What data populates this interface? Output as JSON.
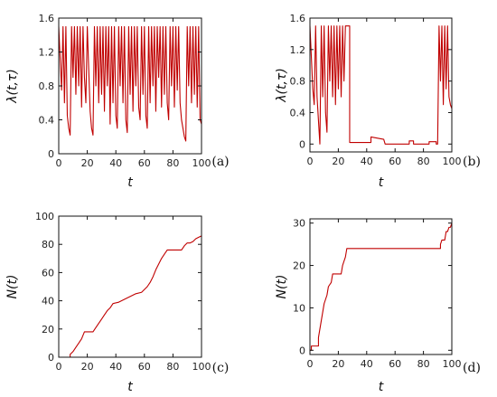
{
  "colors": {
    "series": "#c00000",
    "secondary": "#5a8a2a"
  },
  "chart_data": [
    {
      "id": "a",
      "type": "line",
      "panel_tag": "(a)",
      "xlabel": "t",
      "ylabel": "λ(t,τ)",
      "xlim": [
        0,
        100
      ],
      "ylim": [
        0,
        1.6
      ],
      "xticks": [
        "0",
        "20",
        "40",
        "60",
        "80",
        "100"
      ],
      "yticks": [
        "0",
        "0.4",
        "0.8",
        "1.2",
        "1.6"
      ],
      "grid": false,
      "legend": "none",
      "series": [
        {
          "points": [
            [
              0,
              1.5
            ],
            [
              2,
              0.75
            ],
            [
              3,
              1.5
            ],
            [
              4,
              0.6
            ],
            [
              5,
              1.5
            ],
            [
              6,
              0.45
            ],
            [
              7,
              0.3
            ],
            [
              8,
              0.22
            ],
            [
              9,
              1.5
            ],
            [
              10,
              0.9
            ],
            [
              11,
              1.5
            ],
            [
              12,
              0.7
            ],
            [
              13,
              1.5
            ],
            [
              14,
              0.8
            ],
            [
              15,
              1.5
            ],
            [
              16,
              0.55
            ],
            [
              17,
              1.5
            ],
            [
              18,
              0.9
            ],
            [
              19,
              0.6
            ],
            [
              20,
              1.5
            ],
            [
              21,
              1.0
            ],
            [
              22,
              0.5
            ],
            [
              23,
              0.3
            ],
            [
              24,
              0.22
            ],
            [
              25,
              1.5
            ],
            [
              26,
              0.8
            ],
            [
              27,
              1.5
            ],
            [
              28,
              0.6
            ],
            [
              29,
              1.5
            ],
            [
              30,
              0.7
            ],
            [
              31,
              1.5
            ],
            [
              32,
              0.5
            ],
            [
              33,
              1.5
            ],
            [
              34,
              0.8
            ],
            [
              35,
              1.5
            ],
            [
              36,
              0.35
            ],
            [
              37,
              1.5
            ],
            [
              38,
              0.6
            ],
            [
              39,
              1.5
            ],
            [
              40,
              0.45
            ],
            [
              41,
              0.3
            ],
            [
              42,
              1.5
            ],
            [
              43,
              0.8
            ],
            [
              44,
              1.5
            ],
            [
              45,
              0.6
            ],
            [
              46,
              1.5
            ],
            [
              47,
              0.4
            ],
            [
              48,
              0.25
            ],
            [
              49,
              1.5
            ],
            [
              50,
              0.7
            ],
            [
              51,
              1.5
            ],
            [
              52,
              0.5
            ],
            [
              53,
              1.5
            ],
            [
              54,
              0.8
            ],
            [
              55,
              1.5
            ],
            [
              56,
              0.55
            ],
            [
              57,
              0.4
            ],
            [
              58,
              1.5
            ],
            [
              59,
              0.7
            ],
            [
              60,
              1.5
            ],
            [
              61,
              0.45
            ],
            [
              62,
              0.3
            ],
            [
              63,
              1.5
            ],
            [
              64,
              0.6
            ],
            [
              65,
              1.5
            ],
            [
              66,
              0.8
            ],
            [
              67,
              1.5
            ],
            [
              68,
              0.5
            ],
            [
              69,
              1.5
            ],
            [
              70,
              0.9
            ],
            [
              71,
              1.5
            ],
            [
              72,
              0.55
            ],
            [
              73,
              1.5
            ],
            [
              74,
              0.7
            ],
            [
              75,
              1.5
            ],
            [
              76,
              0.6
            ],
            [
              77,
              0.4
            ],
            [
              78,
              1.5
            ],
            [
              79,
              0.8
            ],
            [
              80,
              1.5
            ],
            [
              81,
              0.55
            ],
            [
              82,
              1.5
            ],
            [
              83,
              0.75
            ],
            [
              84,
              1.5
            ],
            [
              85,
              0.6
            ],
            [
              86,
              0.4
            ],
            [
              87,
              0.3
            ],
            [
              88,
              0.2
            ],
            [
              89,
              0.15
            ],
            [
              90,
              1.5
            ],
            [
              91,
              0.8
            ],
            [
              92,
              1.5
            ],
            [
              93,
              0.6
            ],
            [
              94,
              1.5
            ],
            [
              95,
              0.7
            ],
            [
              96,
              1.5
            ],
            [
              97,
              0.55
            ],
            [
              98,
              1.5
            ],
            [
              99,
              0.4
            ],
            [
              100,
              0.35
            ]
          ]
        }
      ]
    },
    {
      "id": "b",
      "type": "line",
      "panel_tag": "(b)",
      "xlabel": "t",
      "ylabel": "λ(t,τ)",
      "xlim": [
        0,
        100
      ],
      "ylim": [
        -0.1,
        1.6
      ],
      "xticks": [
        "0",
        "20",
        "40",
        "60",
        "80",
        "100"
      ],
      "yticks": [
        "0",
        "0.4",
        "0.8",
        "1.2",
        "1.6"
      ],
      "grid": false,
      "legend": "none",
      "series": [
        {
          "points": [
            [
              0,
              1.5
            ],
            [
              2,
              0.7
            ],
            [
              3,
              0.5
            ],
            [
              4,
              1.5
            ],
            [
              5,
              0.6
            ],
            [
              6,
              0.3
            ],
            [
              7,
              0.0
            ],
            [
              8,
              1.5
            ],
            [
              9,
              0.6
            ],
            [
              10,
              1.5
            ],
            [
              11,
              0.4
            ],
            [
              12,
              0.15
            ],
            [
              13,
              1.5
            ],
            [
              14,
              0.8
            ],
            [
              15,
              1.5
            ],
            [
              16,
              0.6
            ],
            [
              17,
              1.5
            ],
            [
              18,
              0.5
            ],
            [
              19,
              1.5
            ],
            [
              20,
              0.7
            ],
            [
              21,
              1.5
            ],
            [
              22,
              0.6
            ],
            [
              23,
              1.5
            ],
            [
              24,
              0.8
            ],
            [
              25,
              1.5
            ],
            [
              26,
              1.5
            ],
            [
              28,
              1.5
            ],
            [
              28,
              0.02
            ],
            [
              43,
              0.02
            ],
            [
              43,
              0.09
            ],
            [
              52,
              0.06
            ],
            [
              53,
              0.0
            ],
            [
              70,
              0.0
            ],
            [
              70,
              0.04
            ],
            [
              73,
              0.04
            ],
            [
              73,
              0.0
            ],
            [
              78,
              0.0
            ],
            [
              84,
              0.0
            ],
            [
              84,
              0.03
            ],
            [
              89,
              0.03
            ],
            [
              89,
              0.0
            ],
            [
              90,
              0.0
            ],
            [
              91,
              1.5
            ],
            [
              92,
              0.8
            ],
            [
              93,
              1.5
            ],
            [
              94,
              0.5
            ],
            [
              95,
              1.5
            ],
            [
              96,
              0.7
            ],
            [
              97,
              1.5
            ],
            [
              98,
              0.6
            ],
            [
              99,
              0.5
            ],
            [
              100,
              0.45
            ]
          ]
        }
      ]
    },
    {
      "id": "c",
      "type": "line",
      "panel_tag": "(c)",
      "xlabel": "t",
      "ylabel": "N(t)",
      "xlim": [
        0,
        100
      ],
      "ylim": [
        0,
        100
      ],
      "xticks": [
        "0",
        "20",
        "40",
        "60",
        "80",
        "100"
      ],
      "yticks": [
        "0",
        "20",
        "40",
        "60",
        "80",
        "100"
      ],
      "grid": false,
      "legend": "none",
      "series": [
        {
          "points": [
            [
              0,
              0
            ],
            [
              8,
              0
            ],
            [
              8,
              2
            ],
            [
              10,
              4
            ],
            [
              12,
              7
            ],
            [
              14,
              10
            ],
            [
              16,
              13
            ],
            [
              18,
              18
            ],
            [
              24,
              18
            ],
            [
              26,
              21
            ],
            [
              28,
              24
            ],
            [
              30,
              27
            ],
            [
              32,
              30
            ],
            [
              34,
              33
            ],
            [
              36,
              35
            ],
            [
              38,
              38
            ],
            [
              42,
              39
            ],
            [
              46,
              41
            ],
            [
              50,
              43
            ],
            [
              54,
              45
            ],
            [
              58,
              46
            ],
            [
              60,
              48
            ],
            [
              62,
              50
            ],
            [
              64,
              53
            ],
            [
              66,
              57
            ],
            [
              68,
              62
            ],
            [
              70,
              66
            ],
            [
              72,
              70
            ],
            [
              74,
              73
            ],
            [
              76,
              76
            ],
            [
              86,
              76
            ],
            [
              88,
              79
            ],
            [
              90,
              81
            ],
            [
              92,
              81
            ],
            [
              94,
              82
            ],
            [
              96,
              84
            ],
            [
              98,
              85
            ],
            [
              100,
              86
            ]
          ]
        }
      ]
    },
    {
      "id": "d",
      "type": "line",
      "panel_tag": "(d)",
      "xlabel": "t",
      "ylabel": "N(t)",
      "xlim": [
        0,
        100
      ],
      "ylim": [
        -1,
        31
      ],
      "xticks": [
        "0",
        "20",
        "40",
        "60",
        "80",
        "100"
      ],
      "yticks": [
        "0",
        "10",
        "20",
        "30"
      ],
      "grid": false,
      "legend": "none",
      "series": [
        {
          "points": [
            [
              0,
              0
            ],
            [
              1,
              0
            ],
            [
              1,
              1
            ],
            [
              6,
              1
            ],
            [
              6,
              3
            ],
            [
              7,
              5
            ],
            [
              8,
              7
            ],
            [
              9,
              9
            ],
            [
              10,
              11
            ],
            [
              12,
              13
            ],
            [
              13,
              15
            ],
            [
              15,
              16
            ],
            [
              16,
              18
            ],
            [
              22,
              18
            ],
            [
              23,
              20
            ],
            [
              25,
              22
            ],
            [
              26,
              24
            ],
            [
              92,
              24
            ],
            [
              92,
              25
            ],
            [
              93,
              26
            ],
            [
              95,
              26
            ],
            [
              96,
              28
            ],
            [
              97,
              28
            ],
            [
              98,
              29
            ],
            [
              99,
              29
            ],
            [
              100,
              30
            ]
          ]
        }
      ]
    }
  ]
}
